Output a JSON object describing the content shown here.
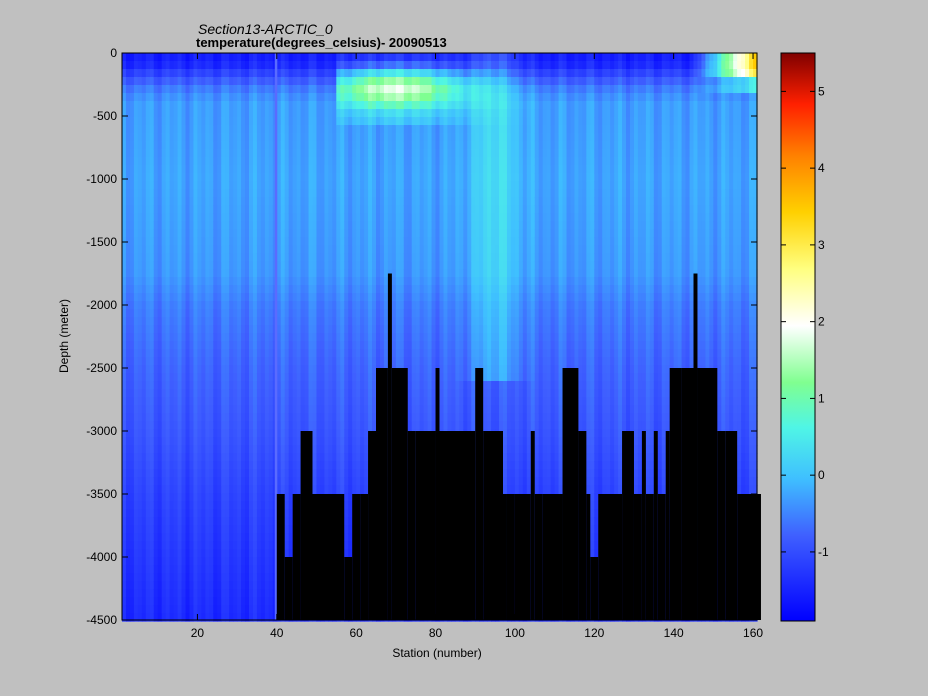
{
  "chart_data": {
    "type": "heatmap",
    "title": "Section13-ARCTIC_0",
    "subtitle": "temperature(degrees_celsius)- 20090513",
    "xlabel": "Station (number)",
    "ylabel": "Depth (meter)",
    "xlim": [
      1,
      161
    ],
    "ylim": [
      -4500,
      0
    ],
    "xticks": [
      "20",
      "40",
      "60",
      "80",
      "100",
      "120",
      "140",
      "160"
    ],
    "yticks": [
      "0",
      "-500",
      "-1000",
      "-1500",
      "-2000",
      "-2500",
      "-3000",
      "-3500",
      "-4000",
      "-4500"
    ],
    "colorbar": {
      "range": [
        -1.9,
        5.5
      ],
      "ticks": [
        "-1",
        "0",
        "1",
        "2",
        "3",
        "4",
        "5"
      ],
      "colormap": "jet"
    },
    "bottom_mask_color": "#000000",
    "bathymetry": {
      "station_ranges": [
        [
          1,
          39
        ],
        [
          40,
          41
        ],
        [
          42,
          43
        ],
        [
          44,
          45
        ],
        [
          46,
          48
        ],
        [
          49,
          56
        ],
        [
          57,
          58
        ],
        [
          59,
          60
        ],
        [
          61,
          62
        ],
        [
          63,
          64
        ],
        [
          65,
          67
        ],
        [
          68,
          68
        ],
        [
          69,
          72
        ],
        [
          73,
          74
        ],
        [
          75,
          79
        ],
        [
          80,
          80
        ],
        [
          81,
          89
        ],
        [
          90,
          91
        ],
        [
          92,
          96
        ],
        [
          97,
          97
        ],
        [
          98,
          99
        ],
        [
          100,
          103
        ],
        [
          104,
          104
        ],
        [
          105,
          106
        ],
        [
          107,
          111
        ],
        [
          112,
          115
        ],
        [
          116,
          117
        ],
        [
          118,
          118
        ],
        [
          119,
          120
        ],
        [
          121,
          126
        ],
        [
          127,
          129
        ],
        [
          130,
          131
        ],
        [
          132,
          132
        ],
        [
          133,
          134
        ],
        [
          135,
          135
        ],
        [
          136,
          137
        ],
        [
          138,
          138
        ],
        [
          139,
          141
        ],
        [
          142,
          144
        ],
        [
          145,
          145
        ],
        [
          146,
          150
        ],
        [
          151,
          152
        ],
        [
          153,
          155
        ],
        [
          156,
          161
        ]
      ],
      "bottom_depth": [
        -4500,
        -3500,
        -4000,
        -3500,
        -3000,
        -3500,
        -4000,
        -3500,
        -3500,
        -3000,
        -2500,
        -1750,
        -2500,
        -3000,
        -3000,
        -2500,
        -3000,
        -2500,
        -3000,
        -3500,
        -3500,
        -3500,
        -3000,
        -3500,
        -3500,
        -2500,
        -3000,
        -3500,
        -4000,
        -3500,
        -3000,
        -3500,
        -3000,
        -3500,
        -3000,
        -3500,
        -3000,
        -2500,
        -2500,
        -1750,
        -2500,
        -3000,
        -3000,
        -3500
      ]
    },
    "temperature_profile": {
      "depth_levels": [
        0,
        -100,
        -200,
        -300,
        -400,
        -500,
        -1000,
        -1750,
        -2000,
        -2500,
        -3000,
        -3500,
        -4000,
        -4500
      ],
      "west_stations_1_39": [
        -1.6,
        -1.4,
        -0.9,
        -0.5,
        -0.3,
        -0.3,
        -0.25,
        -0.35,
        -0.55,
        -0.75,
        -0.9,
        -1.1,
        -1.25,
        -1.4
      ],
      "central_warm_core_stations_60_75": [
        -1.5,
        -0.6,
        1.2,
        1.9,
        1.0,
        0.1,
        -0.2,
        -0.5,
        -0.7,
        -0.9,
        -1.0,
        -1.1
      ],
      "east_surface_stations_150_161": [
        3.5,
        3.0,
        0.5
      ]
    },
    "annotations": []
  }
}
